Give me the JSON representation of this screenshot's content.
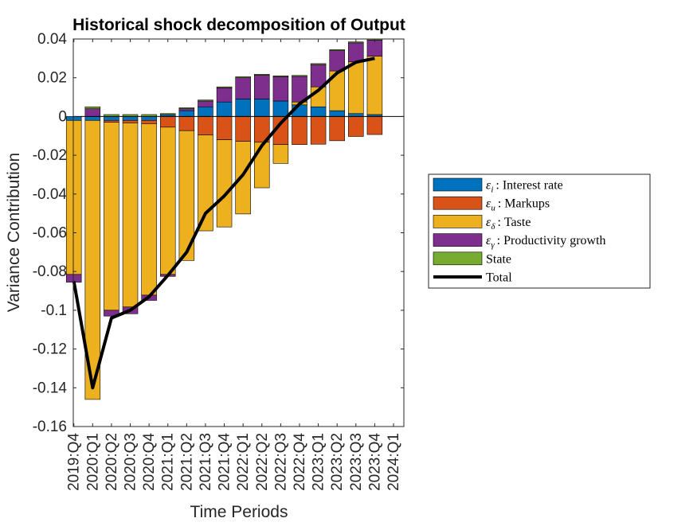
{
  "chart_data": {
    "type": "bar",
    "stacked": true,
    "title": "Historical shock decomposition of Output",
    "xlabel": "Time Periods",
    "ylabel": "Variance Contribution",
    "ylim": [
      -0.16,
      0.04
    ],
    "yticks": [
      0.04,
      0.02,
      0,
      -0.02,
      -0.04,
      -0.06,
      -0.08,
      -0.1,
      -0.12,
      -0.14,
      -0.16
    ],
    "ytick_labels": [
      "0.04",
      "0.02",
      "0",
      "-0.02",
      "-0.04",
      "-0.06",
      "-0.08",
      "-0.1",
      "-0.12",
      "-0.14",
      "-0.16"
    ],
    "tick_labels": [
      "2019:Q4",
      "2020:Q1",
      "2020:Q2",
      "2020:Q3",
      "2020:Q4",
      "2021:Q1",
      "2021:Q2",
      "2021:Q3",
      "2021:Q4",
      "2022:Q1",
      "2022:Q2",
      "2022:Q3",
      "2022:Q4",
      "2023:Q1",
      "2023:Q2",
      "2023:Q3",
      "2023:Q4",
      "2024:Q1"
    ],
    "categories": [
      "2019:Q4",
      "2020:Q1",
      "2020:Q2",
      "2020:Q3",
      "2020:Q4",
      "2021:Q1",
      "2021:Q2",
      "2021:Q3",
      "2021:Q4",
      "2022:Q1",
      "2022:Q2",
      "2022:Q3",
      "2022:Q4",
      "2023:Q1",
      "2023:Q2",
      "2023:Q3",
      "2023:Q4"
    ],
    "series": [
      {
        "name": "Interest rate",
        "symbol": "ε",
        "subscript": "i",
        "color": "#0072BD",
        "values": [
          -0.002,
          -0.002,
          -0.002,
          -0.002,
          -0.002,
          0.001,
          0.003,
          0.005,
          0.0075,
          0.009,
          0.009,
          0.008,
          0.006,
          0.005,
          0.003,
          0.0015,
          0.001
        ]
      },
      {
        "name": "Markups",
        "symbol": "ε",
        "subscript": "u",
        "color": "#D95319",
        "values": [
          0,
          0,
          -0.001,
          -0.0013,
          -0.0017,
          -0.0055,
          -0.0073,
          -0.0095,
          -0.012,
          -0.0128,
          -0.0133,
          -0.0145,
          -0.0145,
          -0.0143,
          -0.0125,
          -0.0103,
          -0.0093
        ]
      },
      {
        "name": "Taste",
        "symbol": "ε",
        "subscript": "δ",
        "color": "#EDB120",
        "values": [
          -0.0795,
          -0.144,
          -0.097,
          -0.095,
          -0.0885,
          -0.076,
          -0.067,
          -0.0495,
          -0.045,
          -0.0375,
          -0.0235,
          -0.0097,
          0.0015,
          0.0103,
          0.0205,
          0.0267,
          0.0301
        ]
      },
      {
        "name": "Productivity growth",
        "symbol": "ε",
        "subscript": "γ",
        "color": "#7E2F8E",
        "values": [
          -0.004,
          0.004,
          -0.003,
          -0.0035,
          -0.0027,
          -0.001,
          0.001,
          0.003,
          0.0073,
          0.011,
          0.0123,
          0.0125,
          0.0132,
          0.0115,
          0.0105,
          0.0098,
          0.0083
        ]
      },
      {
        "name": "State",
        "symbol": "",
        "subscript": "",
        "color": "#77AC30",
        "values": [
          0,
          0.001,
          0.001,
          0.001,
          0.001,
          0.0005,
          0.0005,
          0.0005,
          0.0005,
          0.0005,
          0.0005,
          0.0005,
          0.0005,
          0.0005,
          0.0005,
          0.0005,
          0.0005
        ]
      }
    ],
    "total": {
      "name": "Total",
      "color": "#000000",
      "values": [
        -0.085,
        -0.14,
        -0.104,
        -0.1,
        -0.093,
        -0.082,
        -0.07,
        -0.05,
        -0.041,
        -0.03,
        -0.015,
        -0.0035,
        0.0065,
        0.0135,
        0.0225,
        0.028,
        0.03
      ]
    },
    "legend": {
      "placement": "right",
      "entries": [
        {
          "symbol": "ε",
          "subscript": "i",
          "text": ": Interest rate",
          "color": "#0072BD"
        },
        {
          "symbol": "ε",
          "subscript": "u",
          "text": ": Markups",
          "color": "#D95319"
        },
        {
          "symbol": "ε",
          "subscript": "δ",
          "text": ": Taste",
          "color": "#EDB120"
        },
        {
          "symbol": "ε",
          "subscript": "γ",
          "text": ": Productivity growth",
          "color": "#7E2F8E"
        },
        {
          "symbol": "",
          "subscript": "",
          "text": "State",
          "color": "#77AC30"
        },
        {
          "symbol": "",
          "subscript": "",
          "text": "Total",
          "color": "#000000",
          "line": true
        }
      ]
    },
    "grid": false
  }
}
